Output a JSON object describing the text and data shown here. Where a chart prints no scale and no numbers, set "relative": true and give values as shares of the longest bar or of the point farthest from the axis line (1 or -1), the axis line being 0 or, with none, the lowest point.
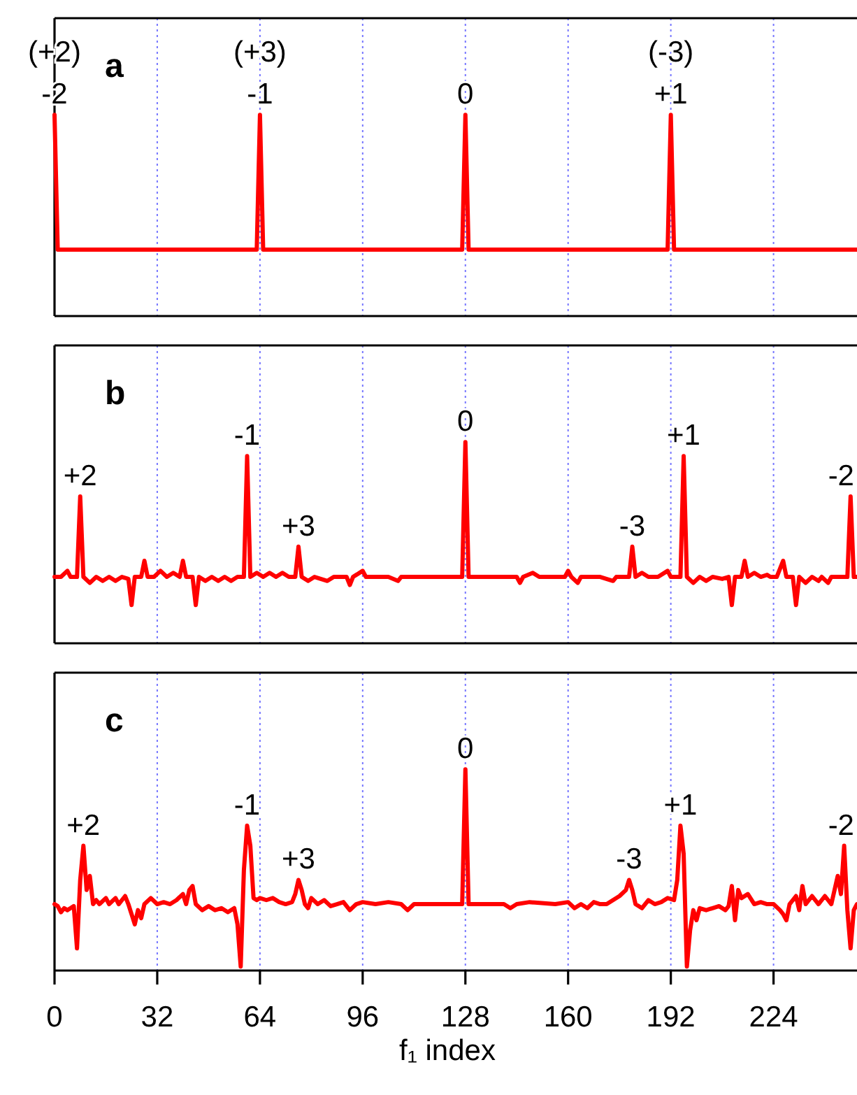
{
  "chart_data": [
    {
      "type": "line",
      "title": "a",
      "relative": true,
      "xlim": [
        0,
        250
      ],
      "xticks": [
        0,
        32,
        64,
        96,
        128,
        160,
        192,
        224
      ],
      "grid": "x",
      "tick_labels": false,
      "x": [
        0,
        1,
        63,
        64,
        65,
        127,
        128,
        129,
        191,
        192,
        193,
        250
      ],
      "series": [
        {
          "color": "#ff0000",
          "values": [
            1,
            0.33,
            0.33,
            1,
            0.33,
            0.33,
            1,
            0.33,
            0.33,
            1,
            0.33,
            0.33
          ]
        }
      ],
      "annotations": [
        {
          "text": "(+2)",
          "x": 0,
          "y": 1
        },
        {
          "text": "-2",
          "x": 0,
          "y": 1
        },
        {
          "text": "(+3)",
          "x": 64,
          "y": 1
        },
        {
          "text": "-1",
          "x": 64,
          "y": 1
        },
        {
          "text": "0",
          "x": 128,
          "y": 1
        },
        {
          "text": "(-3)",
          "x": 192,
          "y": 1
        },
        {
          "text": "+1",
          "x": 192,
          "y": 1
        }
      ]
    },
    {
      "type": "line",
      "title": "b",
      "relative": true,
      "xlim": [
        0,
        250
      ],
      "xticks": [
        0,
        32,
        64,
        96,
        128,
        160,
        192,
        224
      ],
      "grid": "x",
      "tick_labels": false,
      "x": [
        0,
        2,
        4,
        5,
        7,
        8,
        9,
        11,
        13,
        15,
        17,
        19,
        21,
        23,
        24,
        25,
        27,
        28,
        29,
        31,
        33,
        35,
        37,
        39,
        40,
        41,
        43,
        44,
        45,
        47,
        49,
        51,
        53,
        55,
        57,
        59,
        60,
        61,
        63,
        65,
        67,
        69,
        71,
        73,
        75,
        76,
        77,
        79,
        81,
        85,
        87,
        91,
        92,
        93,
        96,
        97,
        104,
        107,
        108,
        127,
        128,
        129,
        144,
        145,
        146,
        149,
        151,
        159,
        160,
        161,
        163,
        164,
        170,
        174,
        175,
        178,
        179,
        180,
        181,
        183,
        185,
        188,
        191,
        192,
        195,
        196,
        197,
        199,
        201,
        203,
        205,
        208,
        210,
        211,
        212,
        214,
        215,
        216,
        218,
        220,
        222,
        223,
        225,
        227,
        228,
        230,
        231,
        232,
        234,
        236,
        238,
        239,
        241,
        242,
        247,
        248,
        249,
        250
      ],
      "series": [
        {
          "color": "#ff0000",
          "values": [
            0.33,
            0.33,
            0.36,
            0.33,
            0.33,
            0.73,
            0.33,
            0.3,
            0.33,
            0.31,
            0.33,
            0.31,
            0.33,
            0.32,
            0.19,
            0.33,
            0.33,
            0.41,
            0.33,
            0.33,
            0.36,
            0.33,
            0.35,
            0.33,
            0.41,
            0.33,
            0.33,
            0.19,
            0.33,
            0.31,
            0.33,
            0.31,
            0.33,
            0.31,
            0.33,
            0.33,
            0.93,
            0.33,
            0.35,
            0.33,
            0.35,
            0.33,
            0.35,
            0.33,
            0.33,
            0.48,
            0.33,
            0.31,
            0.33,
            0.31,
            0.33,
            0.33,
            0.29,
            0.33,
            0.36,
            0.33,
            0.33,
            0.31,
            0.33,
            0.33,
            1,
            0.33,
            0.33,
            0.3,
            0.33,
            0.35,
            0.33,
            0.33,
            0.36,
            0.33,
            0.3,
            0.33,
            0.33,
            0.31,
            0.33,
            0.33,
            0.33,
            0.48,
            0.33,
            0.35,
            0.33,
            0.33,
            0.36,
            0.33,
            0.33,
            0.93,
            0.33,
            0.3,
            0.33,
            0.31,
            0.33,
            0.32,
            0.33,
            0.19,
            0.33,
            0.33,
            0.41,
            0.33,
            0.35,
            0.33,
            0.34,
            0.33,
            0.33,
            0.41,
            0.33,
            0.33,
            0.19,
            0.33,
            0.3,
            0.33,
            0.31,
            0.33,
            0.3,
            0.33,
            0.33,
            0.73,
            0.33,
            0.33
          ]
        }
      ],
      "annotations": [
        {
          "text": "+2",
          "x": 8,
          "y": 0.73
        },
        {
          "text": "-1",
          "x": 60,
          "y": 0.93
        },
        {
          "text": "+3",
          "x": 76,
          "y": 0.48
        },
        {
          "text": "0",
          "x": 128,
          "y": 1
        },
        {
          "text": "-3",
          "x": 180,
          "y": 0.48
        },
        {
          "text": "+1",
          "x": 196,
          "y": 0.93
        },
        {
          "text": "-2",
          "x": 248,
          "y": 0.73
        }
      ]
    },
    {
      "type": "line",
      "title": "c",
      "relative": true,
      "xlim": [
        0,
        250
      ],
      "xticks": [
        0,
        32,
        64,
        96,
        128,
        160,
        192,
        224
      ],
      "grid": "x",
      "tick_labels": "x",
      "xlabel": "f₁ index",
      "x": [
        0,
        1,
        2,
        3,
        4,
        5,
        6,
        7,
        8,
        9,
        10,
        11,
        12,
        13,
        14,
        16,
        17,
        19,
        20,
        22,
        23,
        24,
        25,
        26,
        27,
        28,
        30,
        32,
        34,
        36,
        38,
        40,
        41,
        42,
        43,
        44,
        46,
        48,
        50,
        52,
        54,
        56,
        57,
        58,
        59,
        60,
        61,
        62,
        63,
        64,
        66,
        68,
        70,
        72,
        74,
        75,
        76,
        77,
        78,
        79,
        80,
        82,
        84,
        86,
        88,
        90,
        92,
        94,
        96,
        100,
        104,
        108,
        110,
        112,
        127,
        128,
        129,
        140,
        142,
        144,
        148,
        156,
        160,
        162,
        164,
        166,
        168,
        170,
        172,
        174,
        176,
        178,
        179,
        180,
        181,
        183,
        185,
        187,
        189,
        191,
        193,
        194,
        195,
        196,
        197,
        198,
        199,
        200,
        201,
        203,
        205,
        207,
        209,
        210,
        211,
        212,
        213,
        214,
        216,
        218,
        220,
        222,
        224,
        226,
        227,
        228,
        229,
        231,
        232,
        233,
        234,
        236,
        238,
        240,
        242,
        243,
        244,
        245,
        246,
        247,
        248,
        249,
        250
      ],
      "series": [
        {
          "color": "#ff0000",
          "values": [
            0.33,
            0.32,
            0.29,
            0.31,
            0.3,
            0.31,
            0.32,
            0.11,
            0.45,
            0.62,
            0.4,
            0.47,
            0.33,
            0.35,
            0.33,
            0.36,
            0.33,
            0.36,
            0.33,
            0.37,
            0.33,
            0.28,
            0.23,
            0.3,
            0.26,
            0.33,
            0.36,
            0.33,
            0.34,
            0.33,
            0.35,
            0.38,
            0.33,
            0.4,
            0.42,
            0.33,
            0.3,
            0.32,
            0.3,
            0.31,
            0.29,
            0.31,
            0.23,
            0.02,
            0.5,
            0.72,
            0.62,
            0.36,
            0.35,
            0.36,
            0.35,
            0.36,
            0.34,
            0.33,
            0.34,
            0.38,
            0.45,
            0.4,
            0.33,
            0.31,
            0.36,
            0.33,
            0.35,
            0.32,
            0.33,
            0.34,
            0.3,
            0.33,
            0.34,
            0.33,
            0.34,
            0.33,
            0.3,
            0.33,
            0.33,
            1,
            0.33,
            0.33,
            0.31,
            0.33,
            0.34,
            0.33,
            0.34,
            0.31,
            0.33,
            0.31,
            0.34,
            0.33,
            0.33,
            0.35,
            0.37,
            0.4,
            0.45,
            0.4,
            0.33,
            0.31,
            0.35,
            0.33,
            0.34,
            0.36,
            0.35,
            0.45,
            0.72,
            0.58,
            0.02,
            0.2,
            0.3,
            0.25,
            0.31,
            0.3,
            0.31,
            0.32,
            0.3,
            0.32,
            0.42,
            0.25,
            0.4,
            0.36,
            0.38,
            0.33,
            0.34,
            0.33,
            0.33,
            0.3,
            0.28,
            0.25,
            0.33,
            0.37,
            0.3,
            0.42,
            0.33,
            0.37,
            0.33,
            0.37,
            0.33,
            0.4,
            0.47,
            0.38,
            0.62,
            0.3,
            0.11,
            0.3,
            0.33
          ]
        }
      ],
      "annotations": [
        {
          "text": "+2",
          "x": 9,
          "y": 0.62
        },
        {
          "text": "-1",
          "x": 60,
          "y": 0.72
        },
        {
          "text": "+3",
          "x": 76,
          "y": 0.45
        },
        {
          "text": "0",
          "x": 128,
          "y": 1
        },
        {
          "text": "-3",
          "x": 179,
          "y": 0.45
        },
        {
          "text": "+1",
          "x": 195,
          "y": 0.72
        },
        {
          "text": "-2",
          "x": 246,
          "y": 0.62
        }
      ]
    }
  ]
}
